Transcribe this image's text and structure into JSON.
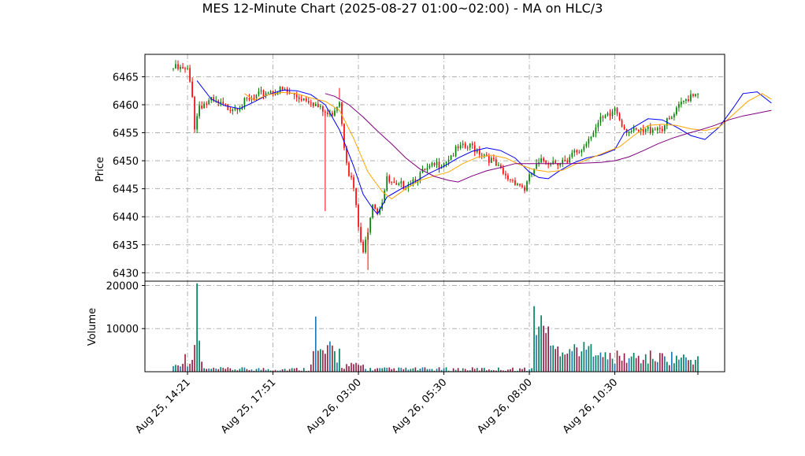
{
  "chart_data": {
    "type": "candlestick",
    "title": "MES 12-Minute Chart (2025-08-27 01:00~02:00) - MA on HLC/3",
    "price_panel": {
      "ylabel": "Price",
      "ylim": [
        6428.5,
        6469
      ],
      "yticks": [
        6430,
        6435,
        6440,
        6445,
        6450,
        6455,
        6460,
        6465
      ],
      "grid": true
    },
    "volume_panel": {
      "ylabel": "Volume",
      "ylim": [
        0,
        21000
      ],
      "yticks": [
        10000,
        20000
      ],
      "grid": true
    },
    "x_axis": {
      "tick_labels": [
        "Aug 25, 14:21",
        "Aug 25, 17:51",
        "Aug 26, 03:00",
        "Aug 26, 05:30",
        "Aug 26, 08:00",
        "Aug 26, 10:30"
      ],
      "tick_indices": [
        6,
        42,
        78,
        114,
        150,
        186
      ],
      "bar_count": 222
    },
    "ma_lines": [
      {
        "color": "#0000ff",
        "values": [
          [
            10,
            6464.3
          ],
          [
            16,
            6461
          ],
          [
            22,
            6459.8
          ],
          [
            28,
            6459.3
          ],
          [
            34,
            6460.5
          ],
          [
            40,
            6461.8
          ],
          [
            46,
            6462.6
          ],
          [
            52,
            6462.5
          ],
          [
            58,
            6461.8
          ],
          [
            64,
            6460
          ],
          [
            70,
            6455.5
          ],
          [
            76,
            6449
          ],
          [
            80,
            6444
          ],
          [
            84,
            6441.5
          ],
          [
            86,
            6440.5
          ],
          [
            90,
            6443.5
          ],
          [
            96,
            6445
          ],
          [
            102,
            6446.3
          ],
          [
            108,
            6447.8
          ],
          [
            114,
            6449
          ],
          [
            120,
            6450.5
          ],
          [
            126,
            6451.7
          ],
          [
            132,
            6452.3
          ],
          [
            138,
            6451.8
          ],
          [
            144,
            6450.5
          ],
          [
            150,
            6448
          ],
          [
            154,
            6447
          ],
          [
            158,
            6446.8
          ],
          [
            162,
            6448
          ],
          [
            168,
            6449.5
          ],
          [
            174,
            6450.5
          ],
          [
            180,
            6451
          ],
          [
            186,
            6452
          ],
          [
            190,
            6455
          ],
          [
            196,
            6456.5
          ],
          [
            200,
            6457.5
          ],
          [
            206,
            6457.3
          ],
          [
            212,
            6456
          ],
          [
            218,
            6454.5
          ],
          [
            224,
            6453.8
          ],
          [
            230,
            6456
          ],
          [
            236,
            6459.5
          ],
          [
            240,
            6462
          ],
          [
            246,
            6462.3
          ],
          [
            252,
            6460.3
          ]
        ]
      },
      {
        "color": "#ffa500",
        "values": [
          [
            30,
            6462
          ],
          [
            34,
            6460.8
          ],
          [
            40,
            6461.8
          ],
          [
            46,
            6462.2
          ],
          [
            52,
            6462
          ],
          [
            58,
            6461.2
          ],
          [
            64,
            6460.6
          ],
          [
            70,
            6459
          ],
          [
            76,
            6454
          ],
          [
            82,
            6448
          ],
          [
            88,
            6444.5
          ],
          [
            92,
            6443.2
          ],
          [
            98,
            6445
          ],
          [
            104,
            6446.5
          ],
          [
            110,
            6447.3
          ],
          [
            116,
            6448
          ],
          [
            122,
            6449.5
          ],
          [
            128,
            6450.6
          ],
          [
            134,
            6451
          ],
          [
            140,
            6450.5
          ],
          [
            146,
            6449.3
          ],
          [
            152,
            6448.4
          ],
          [
            158,
            6448
          ],
          [
            164,
            6448.3
          ],
          [
            170,
            6449.5
          ],
          [
            176,
            6450.5
          ],
          [
            182,
            6451.5
          ],
          [
            188,
            6452.5
          ],
          [
            194,
            6454.5
          ],
          [
            200,
            6456.3
          ],
          [
            206,
            6456.5
          ],
          [
            212,
            6456.3
          ],
          [
            218,
            6455.7
          ],
          [
            224,
            6455.4
          ],
          [
            230,
            6456
          ],
          [
            236,
            6458.3
          ],
          [
            242,
            6460.6
          ],
          [
            248,
            6462
          ],
          [
            252,
            6461
          ]
        ]
      },
      {
        "color": "#800080",
        "values": [
          [
            64,
            6462
          ],
          [
            68,
            6461.5
          ],
          [
            74,
            6460
          ],
          [
            80,
            6457.8
          ],
          [
            86,
            6455.3
          ],
          [
            92,
            6453
          ],
          [
            98,
            6450.5
          ],
          [
            104,
            6448.5
          ],
          [
            110,
            6447.2
          ],
          [
            116,
            6446.5
          ],
          [
            120,
            6446.2
          ],
          [
            126,
            6447.3
          ],
          [
            132,
            6448.2
          ],
          [
            138,
            6448.8
          ],
          [
            144,
            6449.5
          ],
          [
            150,
            6449.5
          ],
          [
            156,
            6449.5
          ],
          [
            162,
            6449.5
          ],
          [
            168,
            6449.5
          ],
          [
            174,
            6449.6
          ],
          [
            180,
            6449.7
          ],
          [
            186,
            6450
          ],
          [
            192,
            6450.7
          ],
          [
            198,
            6451.8
          ],
          [
            204,
            6453
          ],
          [
            210,
            6454
          ],
          [
            216,
            6454.8
          ],
          [
            222,
            6455.5
          ],
          [
            228,
            6456.3
          ],
          [
            234,
            6457.3
          ],
          [
            240,
            6458
          ],
          [
            246,
            6458.5
          ],
          [
            252,
            6459
          ]
        ]
      }
    ],
    "bull_color": "#008000",
    "bear_color": "#ff0000",
    "ma_periods_shown": "unlabeled"
  }
}
